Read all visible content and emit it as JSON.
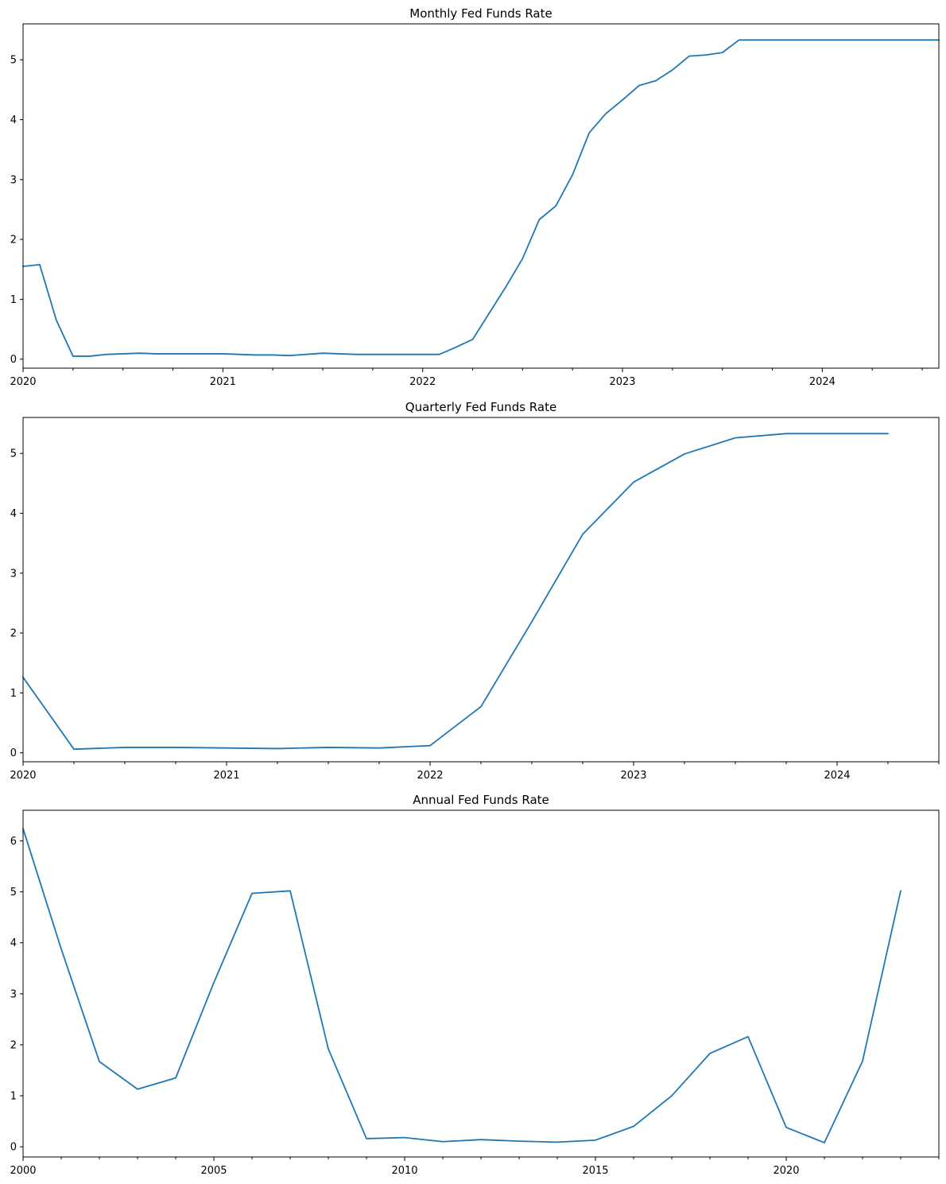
{
  "chart_data": [
    {
      "type": "line",
      "title": "Monthly Fed Funds Rate",
      "xlabel": "",
      "ylabel": "",
      "x_axis": "date",
      "xlim": [
        "2020-01",
        "2024-08"
      ],
      "ylim": [
        -0.15,
        5.6
      ],
      "y_ticks": [
        0,
        1,
        2,
        3,
        4,
        5
      ],
      "x_tick_labels": [
        {
          "x": "2020-01",
          "label": "2020"
        },
        {
          "x": "2021-01",
          "label": "2021"
        },
        {
          "x": "2022-01",
          "label": "2022"
        },
        {
          "x": "2023-01",
          "label": "2023"
        },
        {
          "x": "2024-01",
          "label": "2024"
        }
      ],
      "grid": false,
      "legend": "none",
      "series": [
        {
          "color": "#1f77b4",
          "points": [
            {
              "x": "2020-01",
              "y": 1.55
            },
            {
              "x": "2020-02",
              "y": 1.58
            },
            {
              "x": "2020-03",
              "y": 0.65
            },
            {
              "x": "2020-04",
              "y": 0.05
            },
            {
              "x": "2020-05",
              "y": 0.05
            },
            {
              "x": "2020-06",
              "y": 0.08
            },
            {
              "x": "2020-07",
              "y": 0.09
            },
            {
              "x": "2020-08",
              "y": 0.1
            },
            {
              "x": "2020-09",
              "y": 0.09
            },
            {
              "x": "2020-10",
              "y": 0.09
            },
            {
              "x": "2020-11",
              "y": 0.09
            },
            {
              "x": "2020-12",
              "y": 0.09
            },
            {
              "x": "2021-01",
              "y": 0.09
            },
            {
              "x": "2021-02",
              "y": 0.08
            },
            {
              "x": "2021-03",
              "y": 0.07
            },
            {
              "x": "2021-04",
              "y": 0.07
            },
            {
              "x": "2021-05",
              "y": 0.06
            },
            {
              "x": "2021-06",
              "y": 0.08
            },
            {
              "x": "2021-07",
              "y": 0.1
            },
            {
              "x": "2021-08",
              "y": 0.09
            },
            {
              "x": "2021-09",
              "y": 0.08
            },
            {
              "x": "2021-10",
              "y": 0.08
            },
            {
              "x": "2021-11",
              "y": 0.08
            },
            {
              "x": "2021-12",
              "y": 0.08
            },
            {
              "x": "2022-01",
              "y": 0.08
            },
            {
              "x": "2022-02",
              "y": 0.08
            },
            {
              "x": "2022-03",
              "y": 0.2
            },
            {
              "x": "2022-04",
              "y": 0.33
            },
            {
              "x": "2022-05",
              "y": 0.77
            },
            {
              "x": "2022-06",
              "y": 1.21
            },
            {
              "x": "2022-07",
              "y": 1.68
            },
            {
              "x": "2022-08",
              "y": 2.33
            },
            {
              "x": "2022-09",
              "y": 2.56
            },
            {
              "x": "2022-10",
              "y": 3.08
            },
            {
              "x": "2022-11",
              "y": 3.78
            },
            {
              "x": "2022-12",
              "y": 4.1
            },
            {
              "x": "2023-01",
              "y": 4.33
            },
            {
              "x": "2023-02",
              "y": 4.57
            },
            {
              "x": "2023-03",
              "y": 4.65
            },
            {
              "x": "2023-04",
              "y": 4.83
            },
            {
              "x": "2023-05",
              "y": 5.06
            },
            {
              "x": "2023-06",
              "y": 5.08
            },
            {
              "x": "2023-07",
              "y": 5.12
            },
            {
              "x": "2023-08",
              "y": 5.33
            },
            {
              "x": "2023-09",
              "y": 5.33
            },
            {
              "x": "2023-10",
              "y": 5.33
            },
            {
              "x": "2023-11",
              "y": 5.33
            },
            {
              "x": "2023-12",
              "y": 5.33
            },
            {
              "x": "2024-01",
              "y": 5.33
            },
            {
              "x": "2024-02",
              "y": 5.33
            },
            {
              "x": "2024-03",
              "y": 5.33
            },
            {
              "x": "2024-04",
              "y": 5.33
            },
            {
              "x": "2024-05",
              "y": 5.33
            },
            {
              "x": "2024-06",
              "y": 5.33
            },
            {
              "x": "2024-07",
              "y": 5.33
            },
            {
              "x": "2024-08",
              "y": 5.33
            }
          ]
        }
      ]
    },
    {
      "type": "line",
      "title": "Quarterly Fed Funds Rate",
      "xlabel": "",
      "ylabel": "",
      "x_axis": "date",
      "xlim": [
        "2020-01",
        "2024-07"
      ],
      "ylim": [
        -0.15,
        5.6
      ],
      "y_ticks": [
        0,
        1,
        2,
        3,
        4,
        5
      ],
      "x_tick_labels": [
        {
          "x": "2020-01",
          "label": "2020"
        },
        {
          "x": "2021-01",
          "label": "2021"
        },
        {
          "x": "2022-01",
          "label": "2022"
        },
        {
          "x": "2023-01",
          "label": "2023"
        },
        {
          "x": "2024-01",
          "label": "2024"
        }
      ],
      "grid": false,
      "legend": "none",
      "series": [
        {
          "color": "#1f77b4",
          "points": [
            {
              "x": "2020-01",
              "y": 1.26
            },
            {
              "x": "2020-04",
              "y": 0.06
            },
            {
              "x": "2020-07",
              "y": 0.09
            },
            {
              "x": "2020-10",
              "y": 0.09
            },
            {
              "x": "2021-01",
              "y": 0.08
            },
            {
              "x": "2021-04",
              "y": 0.07
            },
            {
              "x": "2021-07",
              "y": 0.09
            },
            {
              "x": "2021-10",
              "y": 0.08
            },
            {
              "x": "2022-01",
              "y": 0.12
            },
            {
              "x": "2022-04",
              "y": 0.77
            },
            {
              "x": "2022-07",
              "y": 2.19
            },
            {
              "x": "2022-10",
              "y": 3.65
            },
            {
              "x": "2023-01",
              "y": 4.52
            },
            {
              "x": "2023-04",
              "y": 4.99
            },
            {
              "x": "2023-07",
              "y": 5.26
            },
            {
              "x": "2023-10",
              "y": 5.33
            },
            {
              "x": "2024-01",
              "y": 5.33
            },
            {
              "x": "2024-04",
              "y": 5.33
            }
          ]
        }
      ]
    },
    {
      "type": "line",
      "title": "Annual Fed Funds Rate",
      "xlabel": "",
      "ylabel": "",
      "x_axis": "year",
      "xlim": [
        2000,
        2024
      ],
      "ylim": [
        -0.2,
        6.6
      ],
      "y_ticks": [
        0,
        1,
        2,
        3,
        4,
        5,
        6
      ],
      "x_tick_labels": [
        {
          "x": 2000,
          "label": "2000"
        },
        {
          "x": 2005,
          "label": "2005"
        },
        {
          "x": 2010,
          "label": "2010"
        },
        {
          "x": 2015,
          "label": "2015"
        },
        {
          "x": 2020,
          "label": "2020"
        }
      ],
      "grid": false,
      "legend": "none",
      "series": [
        {
          "color": "#1f77b4",
          "points": [
            {
              "x": 2000,
              "y": 6.24
            },
            {
              "x": 2001,
              "y": 3.88
            },
            {
              "x": 2002,
              "y": 1.67
            },
            {
              "x": 2003,
              "y": 1.13
            },
            {
              "x": 2004,
              "y": 1.35
            },
            {
              "x": 2005,
              "y": 3.22
            },
            {
              "x": 2006,
              "y": 4.97
            },
            {
              "x": 2007,
              "y": 5.02
            },
            {
              "x": 2008,
              "y": 1.92
            },
            {
              "x": 2009,
              "y": 0.16
            },
            {
              "x": 2010,
              "y": 0.18
            },
            {
              "x": 2011,
              "y": 0.1
            },
            {
              "x": 2012,
              "y": 0.14
            },
            {
              "x": 2013,
              "y": 0.11
            },
            {
              "x": 2014,
              "y": 0.09
            },
            {
              "x": 2015,
              "y": 0.13
            },
            {
              "x": 2016,
              "y": 0.4
            },
            {
              "x": 2017,
              "y": 1.0
            },
            {
              "x": 2018,
              "y": 1.83
            },
            {
              "x": 2019,
              "y": 2.16
            },
            {
              "x": 2020,
              "y": 0.38
            },
            {
              "x": 2021,
              "y": 0.08
            },
            {
              "x": 2022,
              "y": 1.68
            },
            {
              "x": 2023,
              "y": 5.02
            }
          ]
        }
      ]
    }
  ]
}
